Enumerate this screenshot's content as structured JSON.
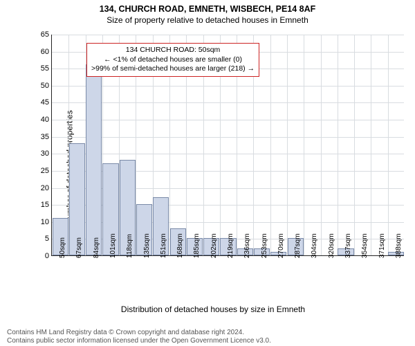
{
  "titles": {
    "main": "134, CHURCH ROAD, EMNETH, WISBECH, PE14 8AF",
    "sub": "Size of property relative to detached houses in Emneth"
  },
  "annotation": {
    "lines": [
      "134 CHURCH ROAD: 50sqm",
      "← <1% of detached houses are smaller (0)",
      ">99% of semi-detached houses are larger (218) →"
    ],
    "border_color": "#cc2222",
    "text_color": "#000000",
    "font_size": 10.5
  },
  "chart": {
    "type": "histogram",
    "xlabel": "Distribution of detached houses by size in Emneth",
    "ylabel": "Number of detached properties",
    "ylim": [
      0,
      65
    ],
    "ytick_step": 5,
    "x_tick_labels": [
      "50sqm",
      "67sqm",
      "84sqm",
      "101sqm",
      "118sqm",
      "135sqm",
      "151sqm",
      "168sqm",
      "185sqm",
      "202sqm",
      "219sqm",
      "236sqm",
      "253sqm",
      "270sqm",
      "287sqm",
      "304sqm",
      "320sqm",
      "337sqm",
      "354sqm",
      "371sqm",
      "388sqm"
    ],
    "values": [
      11,
      33,
      56,
      27,
      28,
      15,
      17,
      8,
      5,
      5,
      5,
      2,
      2,
      1,
      5,
      0,
      0,
      2,
      0,
      0,
      1
    ],
    "bar_fill": "#cdd6e8",
    "bar_stroke": "#7a8aa8",
    "grid_color": "#d8dce0",
    "axis_color": "#222222",
    "background_color": "#ffffff",
    "label_fontsize": 12,
    "tick_fontsize": 11,
    "xtick_fontsize": 10
  },
  "footer": {
    "line1": "Contains HM Land Registry data © Crown copyright and database right 2024.",
    "line2": "Contains public sector information licensed under the Open Government Licence v3.0."
  }
}
